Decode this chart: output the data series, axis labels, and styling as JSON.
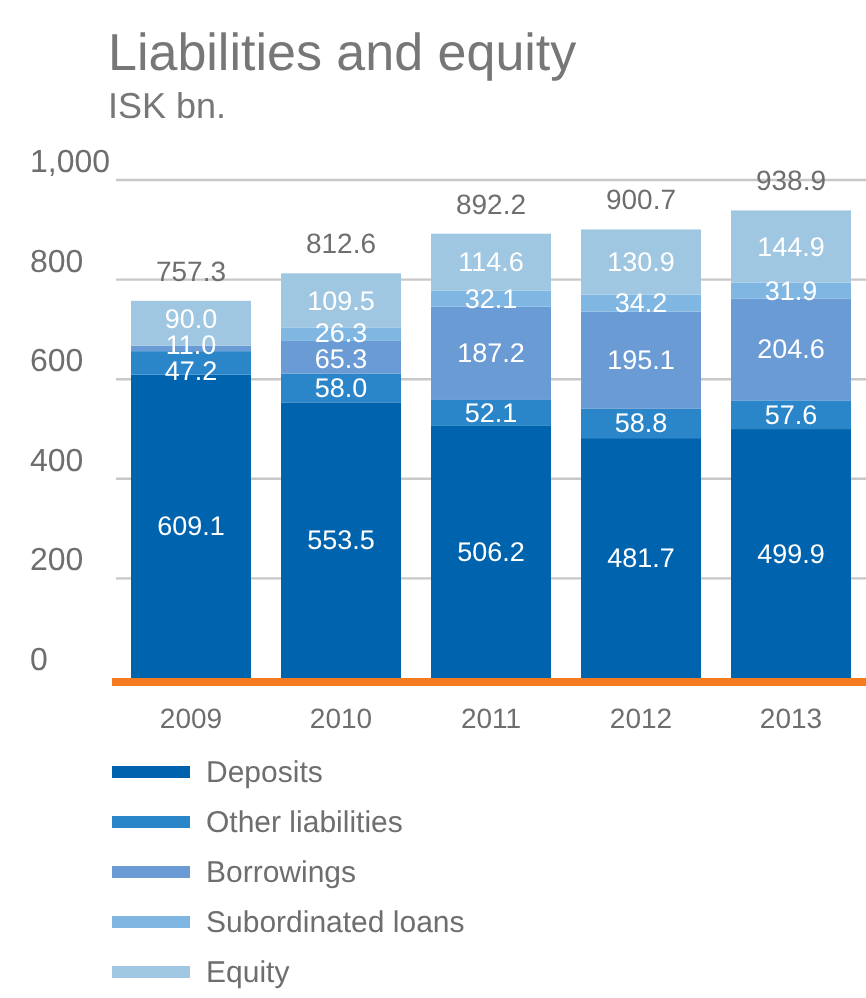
{
  "chart_data": {
    "type": "bar",
    "title": "Liabilities and equity",
    "subtitle": "ISK bn.",
    "categories": [
      "2009",
      "2010",
      "2011",
      "2012",
      "2013"
    ],
    "stacked": true,
    "series": [
      {
        "name": "Deposits",
        "color": "#0063ae",
        "values": [
          609.1,
          553.5,
          506.2,
          481.7,
          499.9
        ],
        "value_labels": [
          "609.1",
          "553.5",
          "506.2",
          "481.7",
          "499.9"
        ]
      },
      {
        "name": "Other liabilities",
        "color": "#2a86c9",
        "values": [
          47.2,
          58.0,
          52.1,
          58.8,
          57.6
        ],
        "value_labels": [
          "47.2",
          "58.0",
          "52.1",
          "58.8",
          "57.6"
        ]
      },
      {
        "name": "Borrowings",
        "color": "#6a9bd4",
        "values": [
          11.0,
          65.3,
          187.2,
          195.1,
          204.6
        ],
        "value_labels": [
          "11.0",
          "65.3",
          "187.2",
          "195.1",
          "204.6"
        ]
      },
      {
        "name": "Subordinated loans",
        "color": "#80b7e2",
        "values": [
          null,
          26.3,
          32.1,
          34.2,
          31.9
        ],
        "value_labels": [
          null,
          "26.3",
          "32.1",
          "34.2",
          "31.9"
        ]
      },
      {
        "name": "Equity",
        "color": "#9fc7e1",
        "values": [
          90.0,
          109.5,
          114.6,
          130.9,
          144.9
        ],
        "value_labels": [
          "90.0",
          "109.5",
          "114.6",
          "130.9",
          "144.9"
        ]
      }
    ],
    "ylim": [
      0,
      1000
    ],
    "yticks": [
      0,
      200,
      400,
      600,
      800,
      {
        "value": 1000,
        "label": "1,000"
      }
    ],
    "grid": "y",
    "legend": "bottom",
    "totals": [
      "757.3",
      "812.6",
      "892.2",
      "900.7",
      "938.9"
    ]
  }
}
